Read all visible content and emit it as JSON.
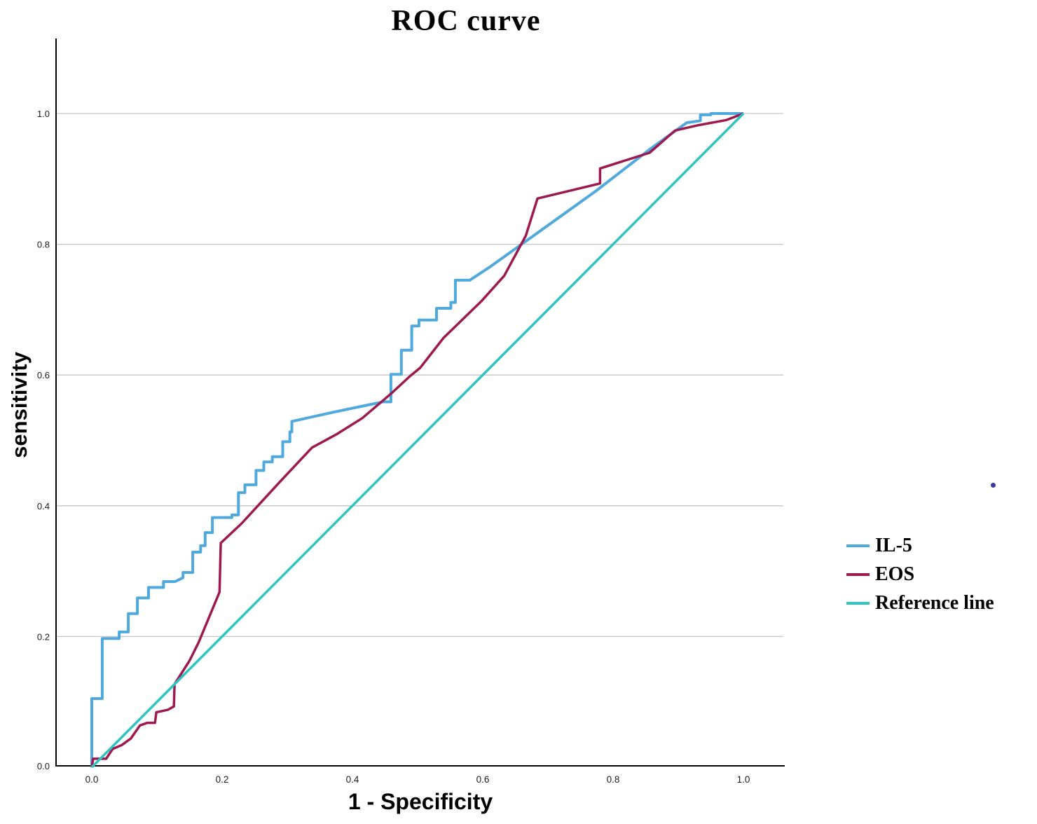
{
  "chart_data": {
    "type": "line",
    "title": "ROC curve",
    "xlabel": "1 - Specificity",
    "ylabel": "sensitivity",
    "xlim": [
      0,
      1
    ],
    "ylim": [
      0,
      1
    ],
    "grid": "horizontal-only",
    "gridline_color": "#c6c6c6",
    "axis_color": "#000000",
    "legend_position": "right-middle",
    "x_ticks": [
      {
        "value": 0.0,
        "label": "0.0"
      },
      {
        "value": 0.2,
        "label": "0.2"
      },
      {
        "value": 0.4,
        "label": "0.4"
      },
      {
        "value": 0.6,
        "label": "0.6"
      },
      {
        "value": 0.8,
        "label": "0.8"
      },
      {
        "value": 1.0,
        "label": "1.0"
      }
    ],
    "y_ticks": [
      {
        "value": 0.0,
        "label": "0.0"
      },
      {
        "value": 0.2,
        "label": "0.2"
      },
      {
        "value": 0.4,
        "label": "0.4"
      },
      {
        "value": 0.6,
        "label": "0.6"
      },
      {
        "value": 0.8,
        "label": "0.8"
      },
      {
        "value": 1.0,
        "label": "1.0"
      }
    ],
    "series": [
      {
        "name": "IL-5",
        "color": "#4fa9dd",
        "stroke_width": 4,
        "points": [
          [
            0,
            0
          ],
          [
            0,
            0.105
          ],
          [
            0.016,
            0.105
          ],
          [
            0.016,
            0.197
          ],
          [
            0.042,
            0.197
          ],
          [
            0.042,
            0.207
          ],
          [
            0.056,
            0.207
          ],
          [
            0.056,
            0.235
          ],
          [
            0.07,
            0.235
          ],
          [
            0.07,
            0.259
          ],
          [
            0.087,
            0.259
          ],
          [
            0.087,
            0.275
          ],
          [
            0.11,
            0.275
          ],
          [
            0.11,
            0.284
          ],
          [
            0.128,
            0.284
          ],
          [
            0.14,
            0.29
          ],
          [
            0.14,
            0.298
          ],
          [
            0.155,
            0.298
          ],
          [
            0.155,
            0.329
          ],
          [
            0.167,
            0.329
          ],
          [
            0.167,
            0.339
          ],
          [
            0.174,
            0.339
          ],
          [
            0.174,
            0.359
          ],
          [
            0.185,
            0.359
          ],
          [
            0.185,
            0.382
          ],
          [
            0.215,
            0.382
          ],
          [
            0.215,
            0.386
          ],
          [
            0.225,
            0.386
          ],
          [
            0.225,
            0.42
          ],
          [
            0.235,
            0.42
          ],
          [
            0.235,
            0.432
          ],
          [
            0.252,
            0.432
          ],
          [
            0.252,
            0.454
          ],
          [
            0.264,
            0.454
          ],
          [
            0.264,
            0.467
          ],
          [
            0.277,
            0.467
          ],
          [
            0.277,
            0.475
          ],
          [
            0.293,
            0.475
          ],
          [
            0.293,
            0.498
          ],
          [
            0.304,
            0.498
          ],
          [
            0.304,
            0.513
          ],
          [
            0.307,
            0.513
          ],
          [
            0.307,
            0.529
          ],
          [
            0.37,
            0.543
          ],
          [
            0.447,
            0.559
          ],
          [
            0.459,
            0.559
          ],
          [
            0.459,
            0.601
          ],
          [
            0.475,
            0.601
          ],
          [
            0.475,
            0.638
          ],
          [
            0.491,
            0.638
          ],
          [
            0.491,
            0.675
          ],
          [
            0.502,
            0.675
          ],
          [
            0.502,
            0.684
          ],
          [
            0.529,
            0.684
          ],
          [
            0.529,
            0.702
          ],
          [
            0.551,
            0.702
          ],
          [
            0.551,
            0.711
          ],
          [
            0.558,
            0.711
          ],
          [
            0.558,
            0.745
          ],
          [
            0.58,
            0.745
          ],
          [
            0.612,
            0.766
          ],
          [
            0.773,
            0.881
          ],
          [
            0.856,
            0.945
          ],
          [
            0.913,
            0.986
          ],
          [
            0.934,
            0.989
          ],
          [
            0.934,
            0.998
          ],
          [
            0.95,
            0.998
          ],
          [
            0.95,
            1.0
          ],
          [
            1.0,
            1.0
          ]
        ]
      },
      {
        "name": "EOS",
        "color": "#9c1a4e",
        "stroke_width": 3.5,
        "points": [
          [
            0,
            0
          ],
          [
            0.002,
            0.013
          ],
          [
            0.022,
            0.013
          ],
          [
            0.032,
            0.028
          ],
          [
            0.046,
            0.034
          ],
          [
            0.06,
            0.044
          ],
          [
            0.074,
            0.064
          ],
          [
            0.085,
            0.068
          ],
          [
            0.097,
            0.068
          ],
          [
            0.099,
            0.084
          ],
          [
            0.117,
            0.088
          ],
          [
            0.126,
            0.093
          ],
          [
            0.127,
            0.127
          ],
          [
            0.15,
            0.163
          ],
          [
            0.164,
            0.191
          ],
          [
            0.196,
            0.268
          ],
          [
            0.198,
            0.343
          ],
          [
            0.23,
            0.373
          ],
          [
            0.29,
            0.438
          ],
          [
            0.338,
            0.489
          ],
          [
            0.375,
            0.509
          ],
          [
            0.415,
            0.534
          ],
          [
            0.461,
            0.573
          ],
          [
            0.488,
            0.598
          ],
          [
            0.504,
            0.611
          ],
          [
            0.54,
            0.657
          ],
          [
            0.598,
            0.713
          ],
          [
            0.633,
            0.752
          ],
          [
            0.666,
            0.813
          ],
          [
            0.684,
            0.87
          ],
          [
            0.78,
            0.893
          ],
          [
            0.78,
            0.916
          ],
          [
            0.856,
            0.94
          ],
          [
            0.895,
            0.974
          ],
          [
            0.93,
            0.982
          ],
          [
            0.974,
            0.99
          ],
          [
            1.0,
            1.0
          ]
        ]
      },
      {
        "name": "Reference line",
        "color": "#2ec4c6",
        "stroke_width": 3.5,
        "points": [
          [
            0,
            0
          ],
          [
            1,
            1
          ]
        ]
      }
    ]
  },
  "artifact_dot": {
    "color": "#3c3ca0"
  }
}
